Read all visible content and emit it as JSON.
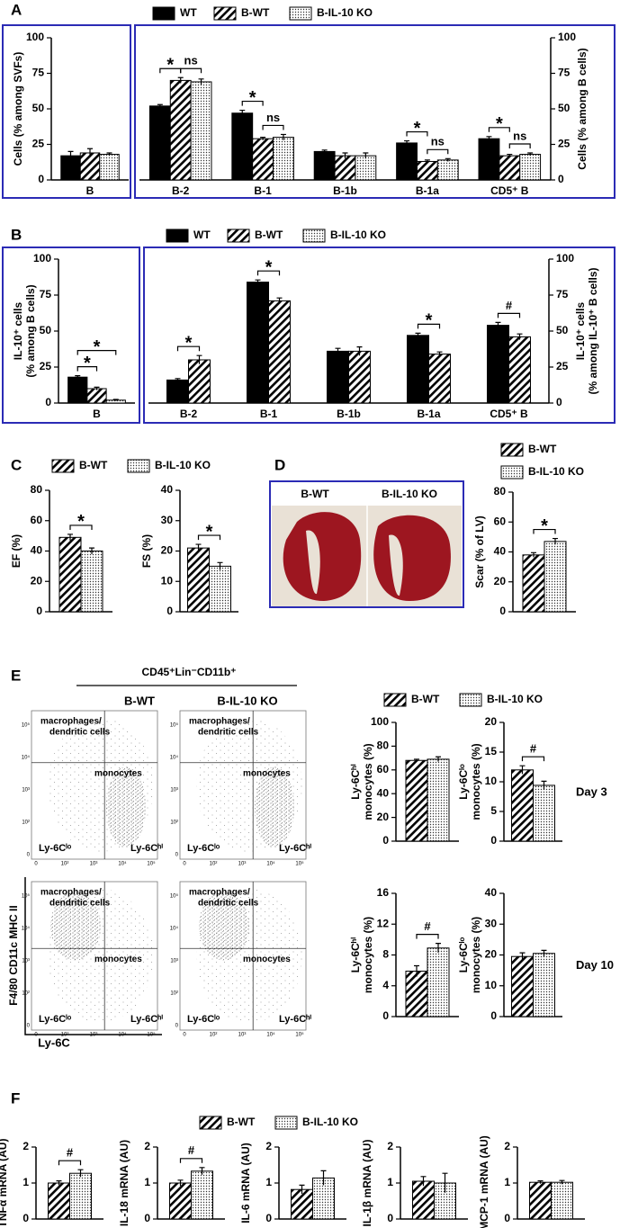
{
  "panel_labels": [
    "A",
    "B",
    "C",
    "D",
    "E",
    "F"
  ],
  "histology": {
    "labels": [
      "B-WT",
      "B-IL-10 KO"
    ]
  },
  "flow": {
    "header": "CD45⁺Lin⁻CD11b⁺",
    "columns": [
      "B-WT",
      "B-IL-10 KO"
    ],
    "upper": [
      "macrophages/",
      "dendritic cells"
    ],
    "middle": "monocytes",
    "left": "Ly-6Cˡᵒ",
    "right": "Ly-6Cʰⁱ",
    "ticks": [
      "0",
      "10²",
      "10³",
      "10⁴",
      "10⁵"
    ],
    "ylabel": "F4/80 CD11c MHC II",
    "xlabel": "Ly-6C"
  },
  "chart_data": [
    {
      "type": "bar",
      "ylabel": [
        "Cells (% among SVFs)"
      ],
      "legend": "top",
      "categories": [
        "B"
      ],
      "series": [
        {
          "name": "WT",
          "color": "#000000",
          "fill": "solid",
          "values": [
            17
          ],
          "errors": [
            3
          ]
        },
        {
          "name": "B-WT",
          "color": "#000000",
          "fill": "hatch",
          "values": [
            19
          ],
          "errors": [
            3
          ]
        },
        {
          "name": "B-IL-10 KO",
          "color": "#000000",
          "fill": "dots",
          "values": [
            18
          ],
          "errors": [
            1
          ]
        }
      ],
      "ylim": [
        0,
        100
      ],
      "yticks": [
        0,
        25,
        50,
        75,
        100
      ],
      "comparisons": []
    },
    {
      "type": "bar",
      "ylabel": [
        "Cells (% among B cells)"
      ],
      "categories": [
        "B-2",
        "B-1",
        "B-1b",
        "B-1a",
        "CD5⁺ B"
      ],
      "series": [
        {
          "name": "WT",
          "color": "#000000",
          "fill": "solid",
          "values": [
            52,
            47,
            20,
            26,
            29
          ],
          "errors": [
            1,
            2,
            1,
            1.5,
            1.5
          ]
        },
        {
          "name": "B-WT",
          "color": "#000000",
          "fill": "hatch",
          "values": [
            70,
            29,
            17,
            13,
            17
          ],
          "errors": [
            2,
            1,
            2,
            1,
            1
          ]
        },
        {
          "name": "B-IL-10 KO",
          "color": "#000000",
          "fill": "dots",
          "values": [
            69,
            30,
            17,
            14,
            18
          ],
          "errors": [
            2,
            2,
            2,
            1,
            1
          ]
        }
      ],
      "ylim": [
        0,
        100
      ],
      "yticks": [
        0,
        25,
        50,
        75,
        100
      ],
      "comparisons": [
        {
          "label": "*",
          "category": 0,
          "series": [
            0,
            1
          ]
        },
        {
          "label": "ns",
          "category": 0,
          "series": [
            1,
            2
          ]
        },
        {
          "label": "*",
          "category": 1,
          "series": [
            0,
            1
          ]
        },
        {
          "label": "ns",
          "category": 1,
          "series": [
            1,
            2
          ]
        },
        {
          "label": "*",
          "category": 3,
          "series": [
            0,
            1
          ]
        },
        {
          "label": "ns",
          "category": 3,
          "series": [
            1,
            2
          ]
        },
        {
          "label": "*",
          "category": 4,
          "series": [
            0,
            1
          ]
        },
        {
          "label": "ns",
          "category": 4,
          "series": [
            1,
            2
          ]
        }
      ]
    },
    {
      "type": "bar",
      "ylabel": [
        "IL-10⁺ cells",
        "(% among B cells)"
      ],
      "legend": "top",
      "categories": [
        "B"
      ],
      "series": [
        {
          "name": "WT",
          "color": "#000000",
          "fill": "solid",
          "values": [
            18
          ],
          "errors": [
            1
          ]
        },
        {
          "name": "B-WT",
          "color": "#000000",
          "fill": "hatch",
          "values": [
            10
          ],
          "errors": [
            1
          ]
        },
        {
          "name": "B-IL-10 KO",
          "color": "#000000",
          "fill": "dots",
          "values": [
            2
          ],
          "errors": [
            0.5
          ]
        }
      ],
      "ylim": [
        0,
        100
      ],
      "yticks": [
        0,
        25,
        50,
        75,
        100
      ],
      "comparisons": [
        {
          "label": "*",
          "category": 0,
          "series": [
            0,
            1
          ]
        },
        {
          "label": "*",
          "category": 0,
          "series": [
            0,
            2
          ]
        }
      ]
    },
    {
      "type": "bar",
      "ylabel": [
        "IL-10⁺ cells",
        "(% among IL-10⁺ B cells)"
      ],
      "categories": [
        "B-2",
        "B-1",
        "B-1b",
        "B-1a",
        "CD5⁺ B"
      ],
      "series": [
        {
          "name": "WT",
          "color": "#000000",
          "fill": "solid",
          "values": [
            16,
            84,
            36,
            47,
            54
          ],
          "errors": [
            1,
            1.5,
            2,
            1.5,
            2
          ]
        },
        {
          "name": "B-WT",
          "color": "#000000",
          "fill": "hatch",
          "values": [
            30,
            71,
            36,
            34,
            46
          ],
          "errors": [
            3,
            2,
            3,
            1.5,
            2
          ]
        },
        {
          "name": "B-IL-10 KO",
          "color": "#000000",
          "fill": "dots",
          "values": [
            null,
            null,
            null,
            null,
            null
          ],
          "errors": [
            null,
            null,
            null,
            null,
            null
          ]
        }
      ],
      "ylim": [
        0,
        100
      ],
      "yticks": [
        0,
        25,
        50,
        75,
        100
      ],
      "comparisons": [
        {
          "label": "*",
          "category": 0,
          "series": [
            0,
            1
          ]
        },
        {
          "label": "*",
          "category": 1,
          "series": [
            0,
            1
          ]
        },
        {
          "label": "*",
          "category": 3,
          "series": [
            0,
            1
          ]
        },
        {
          "label": "#",
          "category": 4,
          "series": [
            0,
            1
          ]
        }
      ]
    },
    {
      "type": "bar",
      "ylabel": [
        "EF (%)"
      ],
      "legend": "top",
      "categories": [
        null
      ],
      "series": [
        {
          "name": "B-WT",
          "color": "#000000",
          "fill": "hatch",
          "values": [
            49
          ],
          "errors": [
            2
          ]
        },
        {
          "name": "B-IL-10 KO",
          "color": "#000000",
          "fill": "dots",
          "values": [
            40
          ],
          "errors": [
            2
          ]
        }
      ],
      "ylim": [
        0,
        80
      ],
      "yticks": [
        0,
        20,
        40,
        60,
        80
      ],
      "comparisons": [
        {
          "label": "*",
          "category": 0,
          "series": [
            0,
            1
          ]
        }
      ]
    },
    {
      "type": "bar",
      "ylabel": [
        "FS (%)"
      ],
      "categories": [
        null
      ],
      "series": [
        {
          "name": "B-WT",
          "color": "#000000",
          "fill": "hatch",
          "values": [
            21
          ],
          "errors": [
            1.2
          ]
        },
        {
          "name": "B-IL-10 KO",
          "color": "#000000",
          "fill": "dots",
          "values": [
            15
          ],
          "errors": [
            1.2
          ]
        }
      ],
      "ylim": [
        0,
        40
      ],
      "yticks": [
        0,
        10,
        20,
        30,
        40
      ],
      "comparisons": [
        {
          "label": "*",
          "category": 0,
          "series": [
            0,
            1
          ]
        }
      ]
    },
    {
      "type": "bar",
      "ylabel": [
        "Scar (% of LV)"
      ],
      "legend": "top",
      "categories": [
        null
      ],
      "series": [
        {
          "name": "B-WT",
          "color": "#000000",
          "fill": "hatch",
          "values": [
            38
          ],
          "errors": [
            1.5
          ]
        },
        {
          "name": "B-IL-10 KO",
          "color": "#000000",
          "fill": "dots",
          "values": [
            47
          ],
          "errors": [
            2
          ]
        }
      ],
      "ylim": [
        0,
        80
      ],
      "yticks": [
        0,
        20,
        40,
        60,
        80
      ],
      "comparisons": [
        {
          "label": "*",
          "category": 0,
          "series": [
            0,
            1
          ]
        }
      ]
    },
    {
      "type": "bar",
      "ylabel": [
        "Ly-6Cʰⁱ",
        "monocytes (%)"
      ],
      "legend": "top",
      "categories": [
        null
      ],
      "series": [
        {
          "name": "B-WT",
          "color": "#000000",
          "fill": "hatch",
          "values": [
            68
          ],
          "errors": [
            1
          ]
        },
        {
          "name": "B-IL-10 KO",
          "color": "#000000",
          "fill": "dots",
          "values": [
            69
          ],
          "errors": [
            2
          ]
        }
      ],
      "ylim": [
        0,
        100
      ],
      "yticks": [
        0,
        20,
        40,
        60,
        80,
        100
      ],
      "comparisons": []
    },
    {
      "type": "bar",
      "ylabel": [
        "Ly-6Cˡᵒ",
        "monocytes (%)"
      ],
      "annotation": "Day 3",
      "categories": [
        null
      ],
      "series": [
        {
          "name": "B-WT",
          "color": "#000000",
          "fill": "hatch",
          "values": [
            12
          ],
          "errors": [
            0.7
          ]
        },
        {
          "name": "B-IL-10 KO",
          "color": "#000000",
          "fill": "dots",
          "values": [
            9.4
          ],
          "errors": [
            0.7
          ]
        }
      ],
      "ylim": [
        0,
        20
      ],
      "yticks": [
        0,
        5,
        10,
        15,
        20
      ],
      "comparisons": [
        {
          "label": "#",
          "category": 0,
          "series": [
            0,
            1
          ]
        }
      ]
    },
    {
      "type": "bar",
      "ylabel": [
        "Ly-6Cʰⁱ",
        "monocytes (%)"
      ],
      "categories": [
        null
      ],
      "series": [
        {
          "name": "B-WT",
          "color": "#000000",
          "fill": "hatch",
          "values": [
            5.9
          ],
          "errors": [
            0.7
          ]
        },
        {
          "name": "B-IL-10 KO",
          "color": "#000000",
          "fill": "dots",
          "values": [
            8.9
          ],
          "errors": [
            0.6
          ]
        }
      ],
      "ylim": [
        0,
        16
      ],
      "yticks": [
        0,
        4,
        8,
        12,
        16
      ],
      "comparisons": [
        {
          "label": "#",
          "category": 0,
          "series": [
            0,
            1
          ]
        }
      ]
    },
    {
      "type": "bar",
      "ylabel": [
        "Ly-6Cˡᵒ",
        "monocytes (%)"
      ],
      "annotation": "Day 10",
      "categories": [
        null
      ],
      "series": [
        {
          "name": "B-WT",
          "color": "#000000",
          "fill": "hatch",
          "values": [
            19.5
          ],
          "errors": [
            1.2
          ]
        },
        {
          "name": "B-IL-10 KO",
          "color": "#000000",
          "fill": "dots",
          "values": [
            20.5
          ],
          "errors": [
            1
          ]
        }
      ],
      "ylim": [
        0,
        40
      ],
      "yticks": [
        0,
        10,
        20,
        30,
        40
      ],
      "comparisons": []
    },
    {
      "type": "bar",
      "ylabel": [
        "TNFα mRNA (AU)"
      ],
      "legend": "top",
      "categories": [
        null
      ],
      "series": [
        {
          "name": "B-WT",
          "color": "#000000",
          "fill": "hatch",
          "values": [
            1.0
          ],
          "errors": [
            0.06
          ]
        },
        {
          "name": "B-IL-10 KO",
          "color": "#000000",
          "fill": "dots",
          "values": [
            1.27
          ],
          "errors": [
            0.1
          ]
        }
      ],
      "ylim": [
        0,
        2
      ],
      "yticks": [
        0,
        1,
        2
      ],
      "comparisons": [
        {
          "label": "#",
          "category": 0,
          "series": [
            0,
            1
          ]
        }
      ]
    },
    {
      "type": "bar",
      "ylabel": [
        "IL-18 mRNA (AU)"
      ],
      "categories": [
        null
      ],
      "series": [
        {
          "name": "B-WT",
          "color": "#000000",
          "fill": "hatch",
          "values": [
            1.0
          ],
          "errors": [
            0.08
          ]
        },
        {
          "name": "B-IL-10 KO",
          "color": "#000000",
          "fill": "dots",
          "values": [
            1.33
          ],
          "errors": [
            0.1
          ]
        }
      ],
      "ylim": [
        0,
        2
      ],
      "yticks": [
        0,
        1,
        2
      ],
      "comparisons": [
        {
          "label": "#",
          "category": 0,
          "series": [
            0,
            1
          ]
        }
      ]
    },
    {
      "type": "bar",
      "ylabel": [
        "IL-6 mRNA (AU)"
      ],
      "categories": [
        null
      ],
      "series": [
        {
          "name": "B-WT",
          "color": "#000000",
          "fill": "hatch",
          "values": [
            0.82
          ],
          "errors": [
            0.12
          ]
        },
        {
          "name": "B-IL-10 KO",
          "color": "#000000",
          "fill": "dots",
          "values": [
            1.14
          ],
          "errors": [
            0.2
          ]
        }
      ],
      "ylim": [
        0,
        2
      ],
      "yticks": [
        0,
        1,
        2
      ],
      "comparisons": []
    },
    {
      "type": "bar",
      "ylabel": [
        "IL-1β mRNA (AU)"
      ],
      "categories": [
        null
      ],
      "series": [
        {
          "name": "B-WT",
          "color": "#000000",
          "fill": "hatch",
          "values": [
            1.05
          ],
          "errors": [
            0.13
          ]
        },
        {
          "name": "B-IL-10 KO",
          "color": "#000000",
          "fill": "dots",
          "values": [
            1.0
          ],
          "errors": [
            0.27
          ]
        }
      ],
      "ylim": [
        0,
        2
      ],
      "yticks": [
        0,
        1,
        2
      ],
      "comparisons": []
    },
    {
      "type": "bar",
      "ylabel": [
        "MCP-1 mRNA (AU)"
      ],
      "categories": [
        null
      ],
      "series": [
        {
          "name": "B-WT",
          "color": "#000000",
          "fill": "hatch",
          "values": [
            1.02
          ],
          "errors": [
            0.04
          ]
        },
        {
          "name": "B-IL-10 KO",
          "color": "#000000",
          "fill": "dots",
          "values": [
            1.02
          ],
          "errors": [
            0.05
          ]
        }
      ],
      "ylim": [
        0,
        2
      ],
      "yticks": [
        0,
        1,
        2
      ],
      "comparisons": []
    }
  ]
}
